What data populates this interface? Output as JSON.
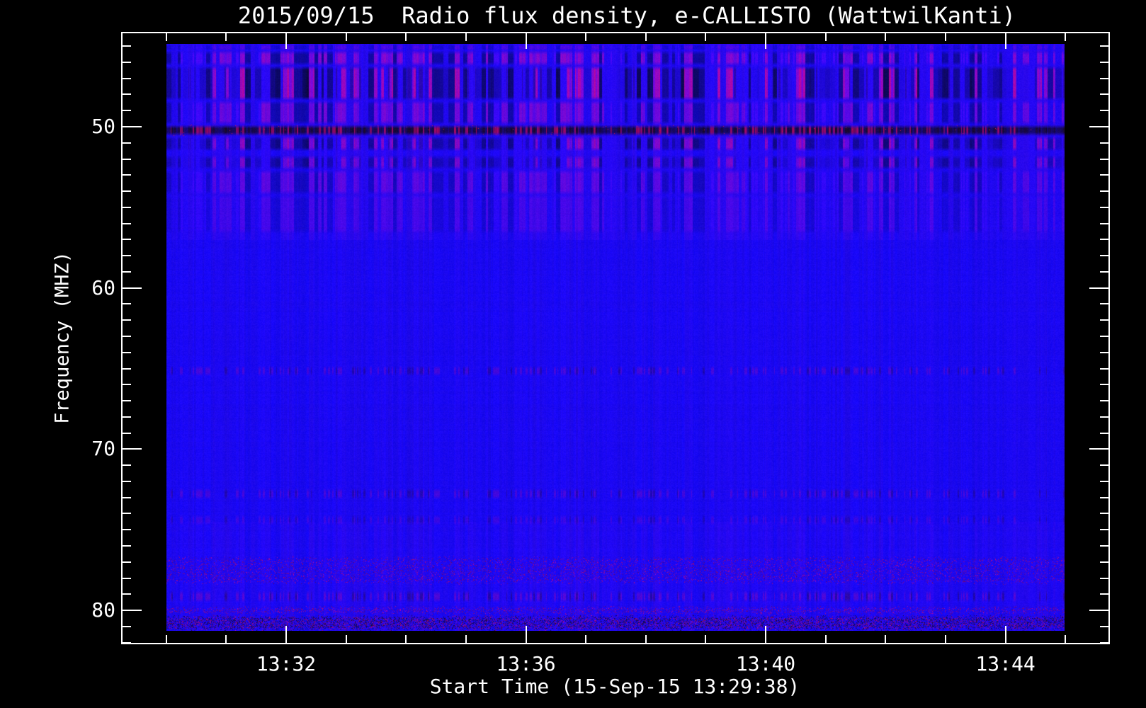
{
  "figure": {
    "background_color": "#000000",
    "text_color": "#ffffff",
    "frame_color": "#ffffff"
  },
  "chart_data": {
    "type": "heatmap",
    "title": "2015/09/15  Radio flux density, e-CALLISTO (WattwilKanti)",
    "xlabel": "Start Time (15-Sep-15 13:29:38)",
    "ylabel": "Frequency (MHZ)",
    "date": "2015/09/15",
    "instrument": "e-CALLISTO",
    "station": "WattwilKanti",
    "x_start_time": "13:29:38",
    "x_tick_labels": [
      "13:32",
      "13:36",
      "13:40",
      "13:44"
    ],
    "x_major_tick_interval_min": 4,
    "x_minor_tick_interval_min": 1,
    "y_tick_values": [
      50,
      60,
      70,
      80
    ],
    "y_tick_labels": [
      "50",
      "60",
      "70",
      "80"
    ],
    "y_minor_tick_interval_mhz": 1,
    "y_axis_range_mhz": [
      44.1,
      82.1
    ],
    "y_range_mhz": [
      44.86,
      81.27
    ],
    "legend": "none",
    "grid": "off",
    "colors": {
      "base_blue": "#1a08ee",
      "navy_stripe": "#0d0a6e",
      "purple_rfi": "#7a2388",
      "dark_line": "#140533",
      "maroon_speckle": "#8c1e46"
    },
    "interference_bands_mhz": [
      {
        "f0": 44.86,
        "f1": 45.25,
        "type": "mottle",
        "strength": 0.3
      },
      {
        "f0": 45.25,
        "f1": 46.2,
        "type": "mottle",
        "strength": 0.8
      },
      {
        "f0": 46.2,
        "f1": 48.35,
        "type": "stripes",
        "strength": 0.9
      },
      {
        "f0": 48.35,
        "f1": 49.85,
        "type": "mottle",
        "strength": 0.65
      },
      {
        "f0": 49.85,
        "f1": 50.55,
        "type": "darkline",
        "strength": 1.0
      },
      {
        "f0": 50.55,
        "f1": 51.5,
        "type": "stripes",
        "strength": 0.7
      },
      {
        "f0": 51.75,
        "f1": 52.65,
        "type": "stripes",
        "strength": 0.55
      },
      {
        "f0": 52.65,
        "f1": 54.2,
        "type": "mottle",
        "strength": 0.45
      },
      {
        "f0": 54.2,
        "f1": 56.6,
        "type": "mottle",
        "strength": 0.25
      },
      {
        "f0": 64.8,
        "f1": 65.45,
        "type": "dashline",
        "strength": 0.55
      },
      {
        "f0": 72.4,
        "f1": 73.1,
        "type": "dashline",
        "strength": 0.55
      },
      {
        "f0": 74.05,
        "f1": 74.7,
        "type": "dashline",
        "strength": 0.4
      },
      {
        "f0": 76.6,
        "f1": 78.4,
        "type": "speckle",
        "strength": 0.45
      },
      {
        "f0": 78.75,
        "f1": 79.5,
        "type": "dashline",
        "strength": 0.65
      },
      {
        "f0": 79.7,
        "f1": 80.25,
        "type": "speckle",
        "strength": 0.7
      },
      {
        "f0": 80.25,
        "f1": 81.27,
        "type": "finenoise",
        "strength": 0.9
      }
    ]
  }
}
